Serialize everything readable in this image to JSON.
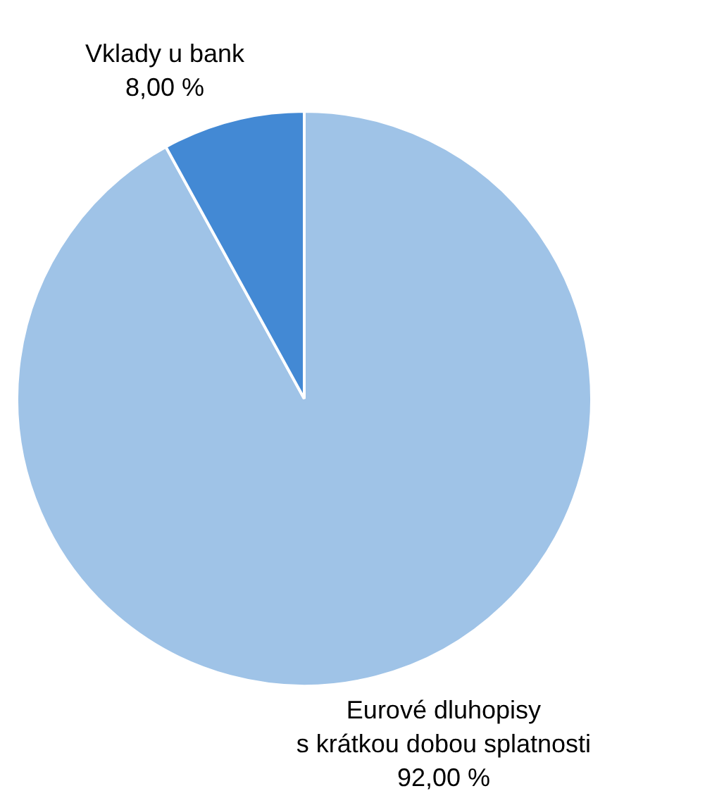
{
  "chart_data": {
    "type": "pie",
    "categories": [
      "Eurové dluhopisy\ns krátkou dobou splatnosti",
      "Vklady u bank"
    ],
    "values": [
      92,
      8
    ],
    "colors": [
      "#9fc3e7",
      "#4389d4"
    ],
    "value_labels": [
      "92,00 %",
      "8,00 %"
    ]
  }
}
